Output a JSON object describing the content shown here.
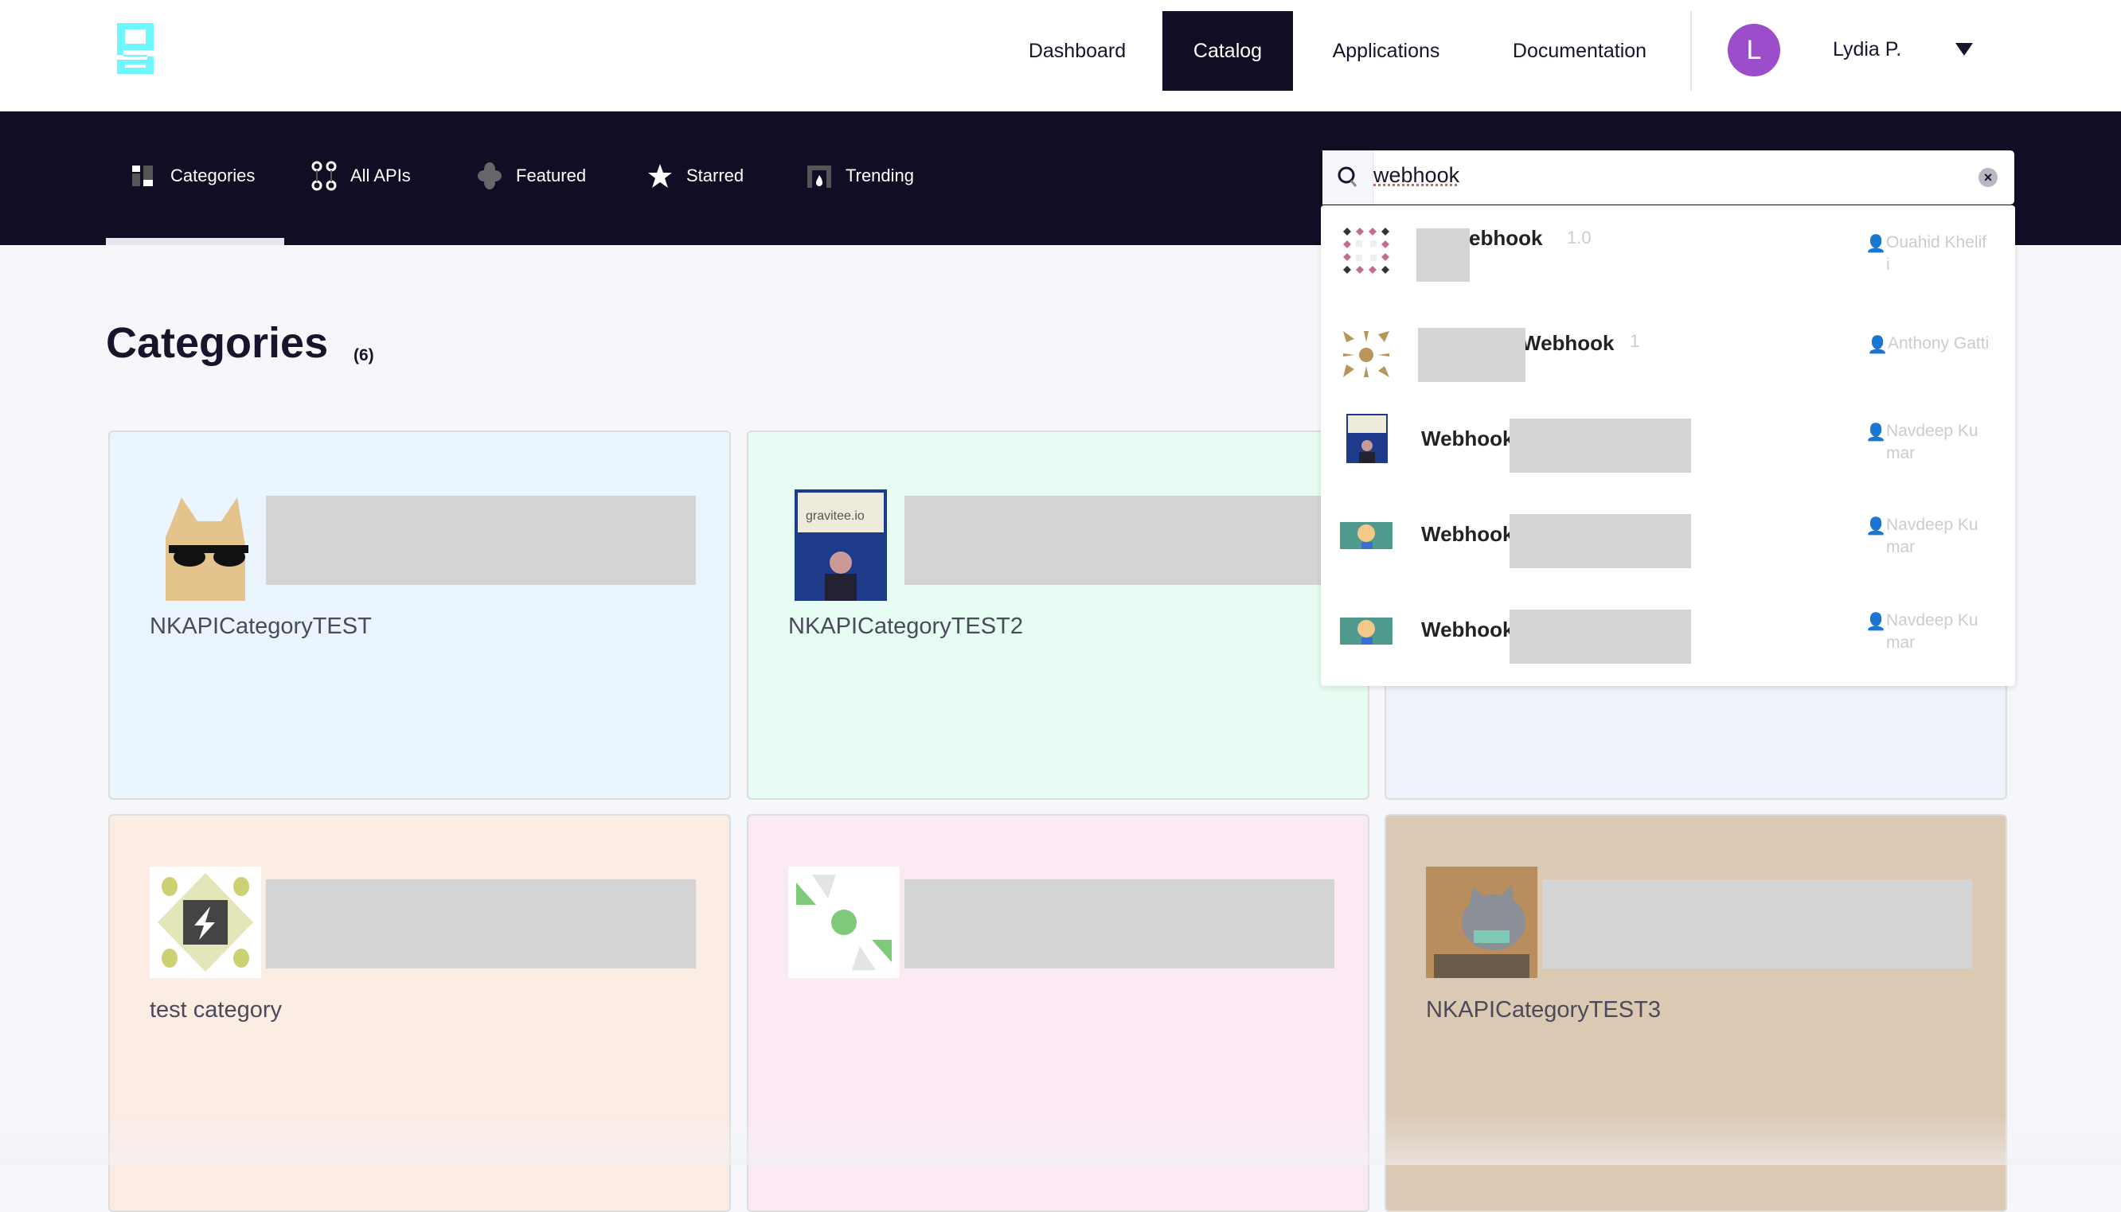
{
  "header": {
    "logo_letter": "g",
    "logo_color": "#6ff7ff",
    "nav": [
      {
        "label": "Dashboard",
        "active": false
      },
      {
        "label": "Catalog",
        "active": true
      },
      {
        "label": "Applications",
        "active": false
      },
      {
        "label": "Documentation",
        "active": false
      }
    ],
    "user": {
      "initial": "L",
      "name": "Lydia P.",
      "avatar_color": "#9b4dca"
    }
  },
  "subnav": {
    "tabs": [
      {
        "label": "Categories",
        "icon": "categories-icon",
        "active": true
      },
      {
        "label": "All APIs",
        "icon": "all-apis-icon"
      },
      {
        "label": "Featured",
        "icon": "featured-icon"
      },
      {
        "label": "Starred",
        "icon": "star-icon"
      },
      {
        "label": "Trending",
        "icon": "trending-icon"
      }
    ]
  },
  "search": {
    "value": "webhook",
    "results": [
      {
        "name": "ebhook",
        "version": "1.0",
        "author": "Ouahid Khelifi",
        "icon": "diamond-pattern-icon"
      },
      {
        "name": "Webhook",
        "version": "1",
        "author": "Anthony Gatti",
        "icon": "sun-pattern-icon"
      },
      {
        "name": "Webhook",
        "version": "",
        "author": "Navdeep Kumar",
        "icon": "gravitee-photo-icon"
      },
      {
        "name": "Webhook",
        "version": "",
        "author": "Navdeep Kumar",
        "icon": "cartoon-avatar-icon"
      },
      {
        "name": "Webhook",
        "version": "",
        "author": "Navdeep Kumar",
        "icon": "cartoon-avatar-icon"
      }
    ]
  },
  "main": {
    "title": "Categories",
    "count": "(6)",
    "categories": [
      {
        "label": "NKAPICategoryTEST",
        "color": "#ebf5fe"
      },
      {
        "label": "NKAPICategoryTEST2",
        "color": "#e7fcf2"
      },
      {
        "label": "",
        "color": "#eff1fb"
      },
      {
        "label": "test category",
        "color": "#fbece4"
      },
      {
        "label": "",
        "color": "#fbe9f4"
      },
      {
        "label": "NKAPICategoryTEST3",
        "color": "#dcc9b4"
      }
    ]
  }
}
